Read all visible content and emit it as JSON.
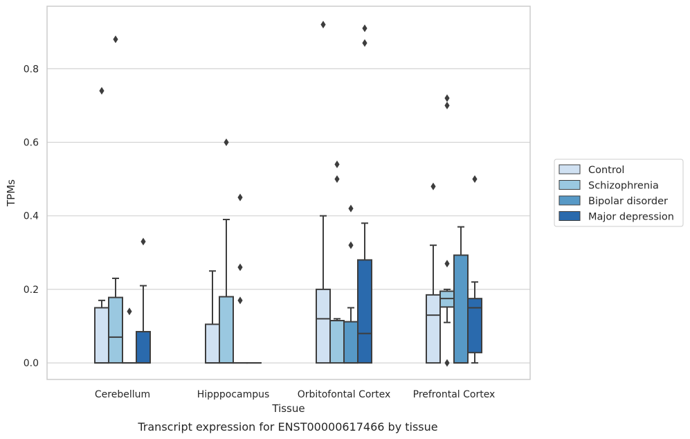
{
  "caption": "Transcript expression for ENST00000617466 by tissue",
  "chart_data": {
    "type": "box",
    "xlabel": "Tissue",
    "ylabel": "TPMs",
    "ylim": [
      -0.045,
      0.97
    ],
    "yticks": [
      "0.0",
      "0.2",
      "0.4",
      "0.6",
      "0.8"
    ],
    "categories": [
      "Cerebellum",
      "Hipppocampus",
      "Orbitofontal Cortex",
      "Prefrontal Cortex"
    ],
    "grid": true,
    "legend_position": "right",
    "series": [
      {
        "name": "Control",
        "color": "#d0e1f2",
        "boxes": [
          {
            "q1": 0.0,
            "median": 0.0,
            "q3": 0.15,
            "whisker_low": 0.0,
            "whisker_high": 0.17,
            "outliers": [
              0.74
            ]
          },
          {
            "q1": 0.0,
            "median": 0.0,
            "q3": 0.105,
            "whisker_low": 0.0,
            "whisker_high": 0.25,
            "outliers": []
          },
          {
            "q1": 0.0,
            "median": 0.12,
            "q3": 0.2,
            "whisker_low": 0.0,
            "whisker_high": 0.4,
            "outliers": [
              0.92
            ]
          },
          {
            "q1": 0.0,
            "median": 0.13,
            "q3": 0.185,
            "whisker_low": 0.0,
            "whisker_high": 0.32,
            "outliers": [
              0.48
            ]
          }
        ]
      },
      {
        "name": "Schizophrenia",
        "color": "#9ac8e0",
        "boxes": [
          {
            "q1": 0.0,
            "median": 0.07,
            "q3": 0.178,
            "whisker_low": 0.0,
            "whisker_high": 0.23,
            "outliers": [
              0.88
            ]
          },
          {
            "q1": 0.0,
            "median": 0.0,
            "q3": 0.18,
            "whisker_low": 0.0,
            "whisker_high": 0.39,
            "outliers": [
              0.6
            ]
          },
          {
            "q1": 0.0,
            "median": 0.115,
            "q3": 0.115,
            "whisker_low": 0.0,
            "whisker_high": 0.12,
            "outliers": [
              0.54,
              0.5
            ]
          },
          {
            "q1": 0.152,
            "median": 0.175,
            "q3": 0.195,
            "whisker_low": 0.11,
            "whisker_high": 0.2,
            "outliers": [
              0.72,
              0.7,
              0.27,
              0.0
            ]
          }
        ]
      },
      {
        "name": "Bipolar disorder",
        "color": "#5799c6",
        "boxes": [
          {
            "q1": 0.0,
            "median": 0.0,
            "q3": 0.0,
            "whisker_low": 0.0,
            "whisker_high": 0.0,
            "outliers": [
              0.14
            ]
          },
          {
            "q1": 0.0,
            "median": 0.0,
            "q3": 0.0,
            "whisker_low": 0.0,
            "whisker_high": 0.0,
            "outliers": [
              0.45,
              0.26,
              0.17
            ]
          },
          {
            "q1": 0.0,
            "median": 0.0,
            "q3": 0.112,
            "whisker_low": 0.0,
            "whisker_high": 0.15,
            "outliers": [
              0.42,
              0.32
            ]
          },
          {
            "q1": 0.0,
            "median": 0.0,
            "q3": 0.293,
            "whisker_low": 0.0,
            "whisker_high": 0.37,
            "outliers": []
          }
        ]
      },
      {
        "name": "Major depression",
        "color": "#2a6aad",
        "boxes": [
          {
            "q1": 0.0,
            "median": 0.0,
            "q3": 0.085,
            "whisker_low": 0.0,
            "whisker_high": 0.21,
            "outliers": [
              0.33
            ]
          },
          {
            "q1": 0.0,
            "median": 0.0,
            "q3": 0.0,
            "whisker_low": 0.0,
            "whisker_high": 0.0,
            "outliers": []
          },
          {
            "q1": 0.0,
            "median": 0.08,
            "q3": 0.28,
            "whisker_low": 0.0,
            "whisker_high": 0.38,
            "outliers": [
              0.91,
              0.87
            ]
          },
          {
            "q1": 0.028,
            "median": 0.15,
            "q3": 0.175,
            "whisker_low": 0.0,
            "whisker_high": 0.22,
            "outliers": [
              0.5
            ]
          }
        ]
      }
    ]
  }
}
